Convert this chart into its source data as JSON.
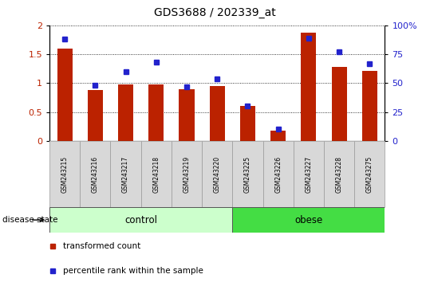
{
  "title": "GDS3688 / 202339_at",
  "samples": [
    "GSM243215",
    "GSM243216",
    "GSM243217",
    "GSM243218",
    "GSM243219",
    "GSM243220",
    "GSM243225",
    "GSM243226",
    "GSM243227",
    "GSM243228",
    "GSM243275"
  ],
  "transformed_count": [
    1.6,
    0.88,
    0.98,
    0.98,
    0.9,
    0.95,
    0.6,
    0.18,
    1.88,
    1.28,
    1.21
  ],
  "percentile_rank": [
    88,
    48,
    60,
    68,
    47,
    54,
    30,
    10,
    89,
    77,
    67
  ],
  "ylim_left": [
    0,
    2
  ],
  "ylim_right": [
    0,
    100
  ],
  "yticks_left": [
    0,
    0.5,
    1.0,
    1.5,
    2.0
  ],
  "yticks_right": [
    0,
    25,
    50,
    75,
    100
  ],
  "bar_color": "#bb2200",
  "dot_color": "#2222cc",
  "control_n": 6,
  "obese_n": 5,
  "control_label": "control",
  "obese_label": "obese",
  "disease_state_label": "disease state",
  "legend_bar": "transformed count",
  "legend_dot": "percentile rank within the sample",
  "control_color": "#ccffcc",
  "obese_color": "#44dd44",
  "label_area_color": "#d8d8d8",
  "ytick_left_labels": [
    "0",
    "0.5",
    "1",
    "1.5",
    "2"
  ],
  "ytick_right_labels": [
    "0",
    "25",
    "50",
    "75",
    "100%"
  ]
}
